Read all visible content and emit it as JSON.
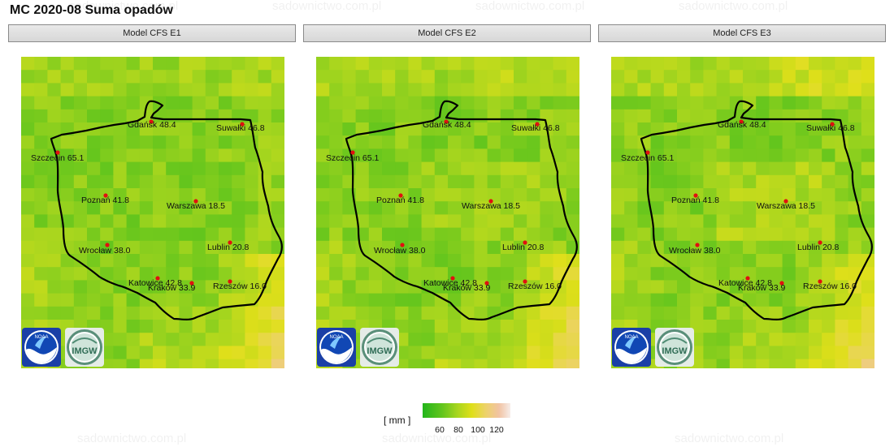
{
  "title": "MC 2020-08 Suma opadów",
  "watermark": "sadownictwo.com.pl",
  "panels": [
    {
      "label": "Model CFS E1"
    },
    {
      "label": "Model CFS E2"
    },
    {
      "label": "Model CFS E3"
    }
  ],
  "cities": [
    {
      "name": "Gdańsk",
      "value": "48.4"
    },
    {
      "name": "Suwałki",
      "value": "46.8"
    },
    {
      "name": "Szczecin",
      "value": "65.1"
    },
    {
      "name": "Poznań",
      "value": "41.8"
    },
    {
      "name": "Warszawa",
      "value": "18.5"
    },
    {
      "name": "Wrocław",
      "value": "38.0"
    },
    {
      "name": "Lublin",
      "value": "20.8"
    },
    {
      "name": "Katowice",
      "value": "42.8"
    },
    {
      "name": "Kraków",
      "value": "33.9"
    },
    {
      "name": "Rzeszów",
      "value": "16.0"
    }
  ],
  "legend": {
    "unit": "[ mm ]",
    "ticks": [
      "60",
      "80",
      "100",
      "120"
    ],
    "colors": [
      "#22b51b",
      "#62c51d",
      "#a9d61e",
      "#dfdf1a",
      "#edd26a",
      "#f1c3a3",
      "#f6ece8"
    ]
  },
  "logos": {
    "left": "NOAA",
    "right": "IMGW"
  },
  "colors": {
    "border": "#000000",
    "city_dot": "#e01010",
    "header_bg": "#dedede"
  }
}
